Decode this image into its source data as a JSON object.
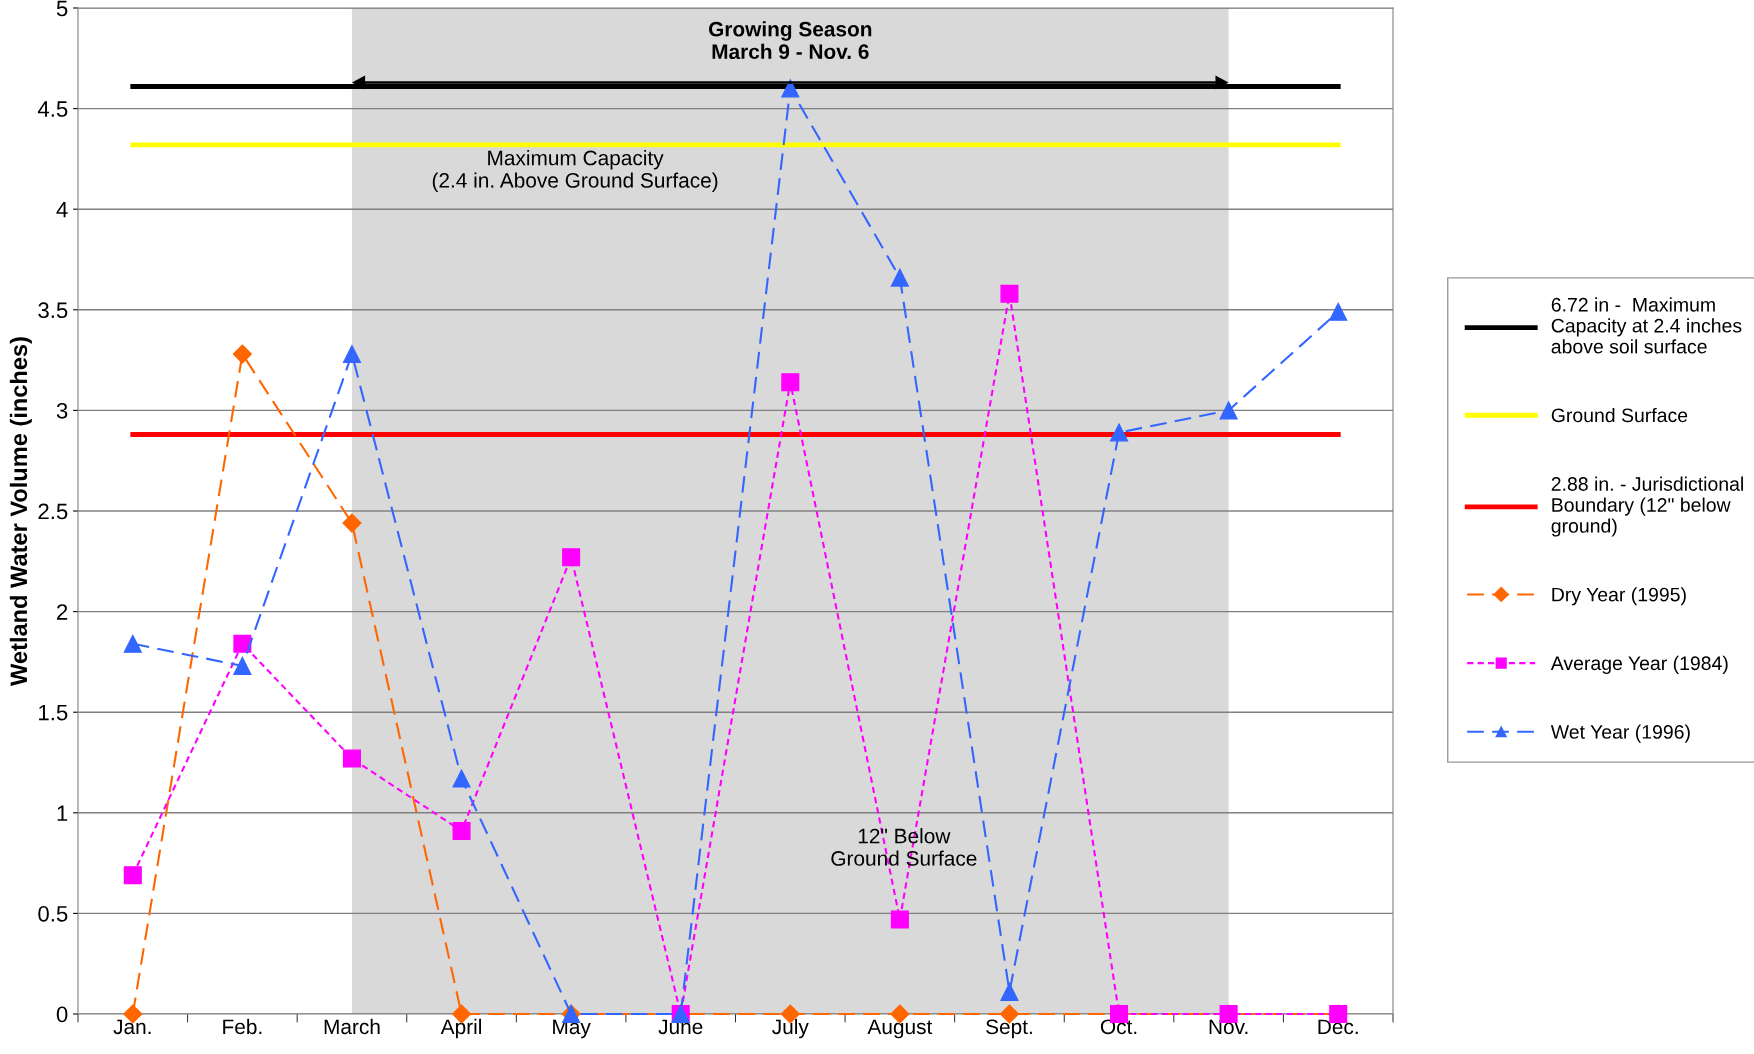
{
  "chart_data": {
    "type": "line",
    "ylabel": "Wetland Water Volume (inches)",
    "categories": [
      "Jan.",
      "Feb.",
      "March",
      "April",
      "May",
      "June",
      "July",
      "August",
      "Sept.",
      "Oct.",
      "Nov.",
      "Dec."
    ],
    "ylim": [
      0,
      5
    ],
    "yticks": [
      0,
      0.5,
      1,
      1.5,
      2,
      2.5,
      3,
      3.5,
      4,
      4.5,
      5
    ],
    "grid": "y",
    "legend": "right",
    "series": [
      {
        "name": "6.72 in -  Maximum\nCapacity at 2.4 inches\nabove soil surface",
        "color": "#000000",
        "marker": "none",
        "line_style": "solid",
        "values": [
          4.61,
          4.61,
          4.61,
          4.61,
          4.61,
          4.61,
          4.61,
          4.61,
          4.61,
          4.61,
          4.61,
          4.61
        ]
      },
      {
        "name": "Ground Surface",
        "color": "#ffff00",
        "marker": "none",
        "line_style": "solid",
        "values": [
          4.32,
          4.32,
          4.32,
          4.32,
          4.32,
          4.32,
          4.32,
          4.32,
          4.32,
          4.32,
          4.32,
          4.32
        ]
      },
      {
        "name": "2.88 in. - Jurisdictional\nBoundary (12\" below\nground)",
        "color": "#ff0000",
        "marker": "none",
        "line_style": "solid",
        "values": [
          2.88,
          2.88,
          2.88,
          2.88,
          2.88,
          2.88,
          2.88,
          2.88,
          2.88,
          2.88,
          2.88,
          2.88
        ]
      },
      {
        "name": "Dry Year (1995)",
        "color": "#ff6600",
        "marker": "diamond",
        "line_style": "dashed",
        "values": [
          0,
          3.28,
          2.44,
          0,
          0,
          0,
          0,
          0,
          0,
          0,
          0,
          0
        ]
      },
      {
        "name": "Average Year (1984)",
        "color": "#ff00ff",
        "marker": "square",
        "line_style": "dotted",
        "values": [
          0.69,
          1.84,
          1.27,
          0.91,
          2.27,
          0,
          3.14,
          0.47,
          3.58,
          0,
          0,
          0
        ]
      },
      {
        "name": "Wet Year (1996)",
        "color": "#3366ff",
        "marker": "triangle",
        "line_style": "dashed",
        "values": [
          1.84,
          1.73,
          3.28,
          1.17,
          0,
          0,
          4.6,
          3.66,
          0.11,
          2.89,
          3.0,
          3.49
        ]
      }
    ],
    "bands": [
      {
        "axis": "x",
        "from": "March",
        "to": "Nov.",
        "label": "Growing Season\nMarch 9 - Nov. 6",
        "color": "#d9d9d9"
      }
    ],
    "annotations": [
      "Maximum Capacity\n(2.4 in. Above Ground Surface)",
      "12\" Below\nGround Surface"
    ]
  }
}
